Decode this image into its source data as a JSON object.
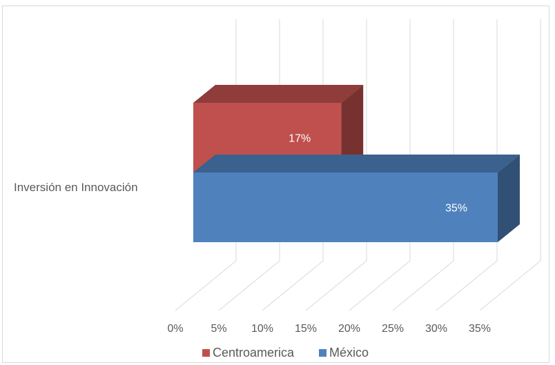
{
  "chart_data": {
    "type": "bar",
    "orientation": "horizontal",
    "style": "3d",
    "categories": [
      "Inversión en Innovación"
    ],
    "series": [
      {
        "name": "Centroamerica",
        "values": [
          17
        ],
        "color": "#C0504D",
        "label": "17%"
      },
      {
        "name": "México",
        "values": [
          35
        ],
        "color": "#4F81BD",
        "label": "35%"
      }
    ],
    "x_ticks": [
      "0%",
      "5%",
      "10%",
      "15%",
      "20%",
      "25%",
      "30%",
      "35%"
    ],
    "xlim": [
      0,
      35
    ],
    "grid": true,
    "legend": "bottom"
  }
}
